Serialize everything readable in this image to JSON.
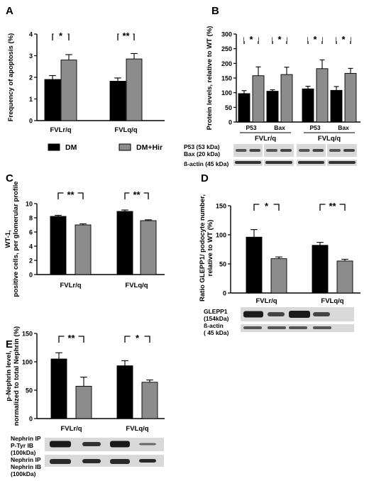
{
  "colors": {
    "dm": "#000000",
    "hir": "#8c8c8c",
    "blot_bg": "#d9d9d9",
    "band": "#1c1c1c"
  },
  "legend": {
    "dm": "DM",
    "hir": "DM+Hir"
  },
  "chart_data": [
    {
      "panel": "A",
      "type": "bar",
      "ylabel": "Frequency of apoptosis (%)",
      "ylim": [
        0,
        4
      ],
      "yticks": [
        "0",
        "1",
        "2",
        "3",
        "4"
      ],
      "categories": [
        "FVLr/q",
        "FVLq/q"
      ],
      "series": [
        {
          "name": "DM",
          "values": [
            1.9,
            1.82
          ],
          "errors": [
            0.18,
            0.15
          ]
        },
        {
          "name": "DM+Hir",
          "values": [
            2.8,
            2.85
          ],
          "errors": [
            0.25,
            0.25
          ]
        }
      ],
      "significance": [
        "*",
        "**"
      ]
    },
    {
      "panel": "B",
      "type": "bar",
      "ylabel": "Protein levels, relative to WT (%)",
      "ylim": [
        0,
        300
      ],
      "yticks": [
        "0",
        "50",
        "100",
        "150",
        "200",
        "250",
        "300"
      ],
      "groups": [
        "FVLr/q",
        "FVLq/q"
      ],
      "subgroups": [
        "P53",
        "Bax",
        "P53",
        "Bax"
      ],
      "series": [
        {
          "name": "DM",
          "values": [
            97,
            105,
            113,
            108
          ],
          "errors": [
            10,
            5,
            9,
            13
          ]
        },
        {
          "name": "DM+Hir",
          "values": [
            158,
            162,
            182,
            166
          ],
          "errors": [
            30,
            25,
            30,
            17
          ]
        }
      ],
      "significance": [
        "*",
        "*",
        "*",
        "*"
      ],
      "blot_labels": [
        "P53 (53 kDa)",
        "Bax (20 kDa)",
        "ß-actin (45 kDa)"
      ]
    },
    {
      "panel": "C",
      "type": "bar",
      "ylabel": "WT-1, positive cells, per glomerular profile",
      "ylim": [
        0,
        10
      ],
      "yticks": [
        "0",
        "2",
        "4",
        "6",
        "8",
        "10"
      ],
      "categories": [
        "FVLr/q",
        "FVLq/q"
      ],
      "series": [
        {
          "name": "DM",
          "values": [
            8.2,
            8.9
          ],
          "errors": [
            0.15,
            0.2
          ]
        },
        {
          "name": "DM+Hir",
          "values": [
            7.0,
            7.6
          ],
          "errors": [
            0.15,
            0.12
          ]
        }
      ],
      "significance": [
        "**",
        "**"
      ]
    },
    {
      "panel": "D",
      "type": "bar",
      "ylabel": "Ratio GLEPP1/ podocyte number, relative to WT (%)",
      "ylim": [
        0,
        150
      ],
      "yticks": [
        "0",
        "50",
        "100",
        "150"
      ],
      "categories": [
        "FVLr/q",
        "FVLq/q"
      ],
      "series": [
        {
          "name": "DM",
          "values": [
            96,
            82
          ],
          "errors": [
            13,
            5
          ]
        },
        {
          "name": "DM+Hir",
          "values": [
            59,
            55
          ],
          "errors": [
            3,
            3
          ]
        }
      ],
      "significance": [
        "*",
        "**"
      ],
      "blot_labels": [
        "GLEPP1 (154kDa)",
        "ß-actin ( 45 kDa)"
      ]
    },
    {
      "panel": "E",
      "type": "bar",
      "ylabel": "p-Nephrin level, normalized to total Nephrin (%)",
      "ylim": [
        0,
        150
      ],
      "yticks": [
        "0",
        "50",
        "100",
        "150"
      ],
      "categories": [
        "FVLr/q",
        "FVLq/q"
      ],
      "series": [
        {
          "name": "DM",
          "values": [
            105,
            93
          ],
          "errors": [
            11,
            9
          ]
        },
        {
          "name": "DM+Hir",
          "values": [
            57,
            64
          ],
          "errors": [
            16,
            4
          ]
        }
      ],
      "significance": [
        "**",
        "*"
      ],
      "blot_labels": [
        "Nephrin IP P-Tyr IB (100kDa)",
        "Nephrin IP Nephrin IB (100kDa)"
      ]
    }
  ]
}
